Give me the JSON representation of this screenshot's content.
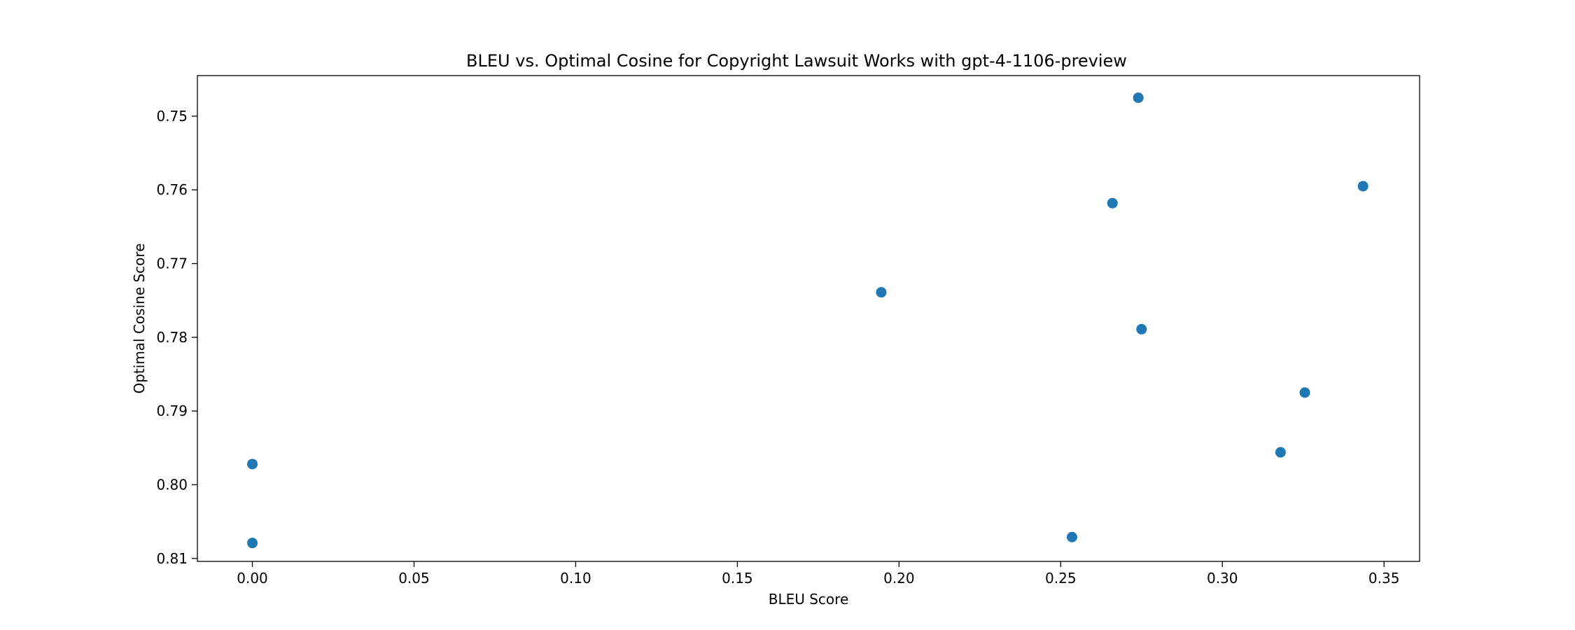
{
  "chart_data": {
    "type": "scatter",
    "title": "BLEU vs. Optimal Cosine for Copyright Lawsuit Works with gpt-4-1106-preview",
    "xlabel": "BLEU Score",
    "ylabel": "Optimal Cosine Score",
    "xlim": [
      -0.017,
      0.361
    ],
    "ylim": [
      0.8104,
      0.7445
    ],
    "y_inverted": true,
    "grid": false,
    "x_ticks": [
      0.0,
      0.05,
      0.1,
      0.15,
      0.2,
      0.25,
      0.3,
      0.35
    ],
    "x_tick_labels": [
      "0.00",
      "0.05",
      "0.10",
      "0.15",
      "0.20",
      "0.25",
      "0.30",
      "0.35"
    ],
    "y_ticks": [
      0.75,
      0.76,
      0.77,
      0.78,
      0.79,
      0.8,
      0.81
    ],
    "y_tick_labels": [
      "0.75",
      "0.76",
      "0.77",
      "0.78",
      "0.79",
      "0.80",
      "0.81"
    ],
    "color": "#1f77b4",
    "points": [
      {
        "x": 0.274,
        "y": 0.7475
      },
      {
        "x": 0.3435,
        "y": 0.7595
      },
      {
        "x": 0.266,
        "y": 0.7618
      },
      {
        "x": 0.1945,
        "y": 0.7739
      },
      {
        "x": 0.275,
        "y": 0.7789
      },
      {
        "x": 0.3255,
        "y": 0.7875
      },
      {
        "x": 0.318,
        "y": 0.7956
      },
      {
        "x": 0.0,
        "y": 0.7972
      },
      {
        "x": 0.2535,
        "y": 0.8071
      },
      {
        "x": 0.0,
        "y": 0.8079
      }
    ]
  }
}
